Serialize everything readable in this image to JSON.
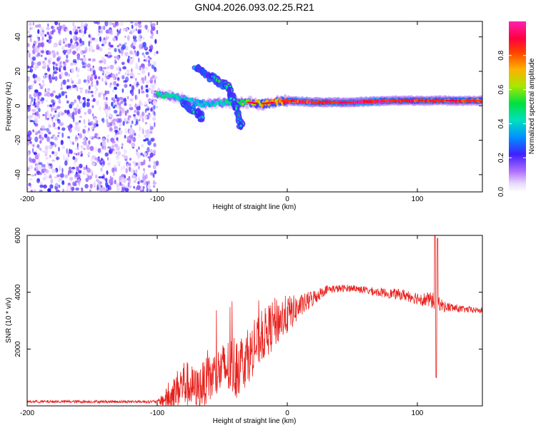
{
  "title": "GN04.2026.093.02.25.R21",
  "chart_data": [
    {
      "type": "heatmap",
      "title": "GN04.2026.093.02.25.R21",
      "xlabel": "Height of straight line (km)",
      "ylabel": "Frequency (Hz)",
      "xlim": [
        -200,
        150
      ],
      "ylim": [
        -50,
        49
      ],
      "xticks": [
        -200,
        -100,
        0,
        100
      ],
      "yticks": [
        -40,
        -20,
        0,
        20,
        40
      ],
      "xtick_labels": [
        "-200",
        "-100",
        "0",
        "100"
      ],
      "ytick_labels": [
        "-40",
        "-20",
        "0",
        "20",
        "40"
      ],
      "colorbar": {
        "label": "Normalized spectral amplitude",
        "range": [
          0,
          1
        ],
        "ticks": [
          0.0,
          0.2,
          0.4,
          0.6,
          0.8
        ],
        "tick_labels": [
          "0.0",
          "0.2",
          "0.4",
          "0.6",
          "0.8"
        ],
        "colors": [
          "#ffffff",
          "#9a50ff",
          "#2020ff",
          "#00d8ff",
          "#00e060",
          "#d8e800",
          "#ff9000",
          "#ff0000",
          "#ff10a0"
        ]
      },
      "noise_region_km": [
        -200,
        -100
      ],
      "ridge_track": [
        {
          "x": -100,
          "y": 7,
          "amp": 0.45
        },
        {
          "x": -80,
          "y": 4,
          "amp": 0.4
        },
        {
          "x": -65,
          "y": 1,
          "amp": 0.35
        },
        {
          "x": -45,
          "y": 2,
          "amp": 0.45
        },
        {
          "x": -30,
          "y": 2,
          "amp": 0.55
        },
        {
          "x": -20,
          "y": 1,
          "amp": 0.7
        },
        {
          "x": -10,
          "y": 2,
          "amp": 0.75
        },
        {
          "x": 0,
          "y": 3,
          "amp": 0.85
        },
        {
          "x": 20,
          "y": 2,
          "amp": 0.9
        },
        {
          "x": 50,
          "y": 2,
          "amp": 0.95
        },
        {
          "x": 80,
          "y": 3,
          "amp": 0.9
        },
        {
          "x": 100,
          "y": 3,
          "amp": 0.85
        },
        {
          "x": 120,
          "y": 3,
          "amp": 0.85
        },
        {
          "x": 150,
          "y": 3,
          "amp": 0.8
        }
      ],
      "branches": [
        {
          "name": "lower",
          "points": [
            {
              "x": -80,
              "y": 2
            },
            {
              "x": -65,
              "y": -7
            }
          ]
        },
        {
          "name": "upper",
          "points": [
            {
              "x": -70,
              "y": 22
            },
            {
              "x": -45,
              "y": 10
            },
            {
              "x": -35,
              "y": -13
            }
          ]
        }
      ]
    },
    {
      "type": "line",
      "xlabel": "Height of straight line (km)",
      "ylabel": "SNR (10 * v/v)",
      "xlim": [
        -200,
        150
      ],
      "ylim": [
        0,
        6000
      ],
      "xticks": [
        -200,
        -100,
        0,
        100
      ],
      "yticks": [
        2000,
        4000,
        6000
      ],
      "xtick_labels": [
        "-200",
        "-100",
        "0",
        "100"
      ],
      "ytick_labels": [
        "2000",
        "4000",
        "6000"
      ],
      "color": "#e8201c",
      "envelope": [
        {
          "x": -200,
          "y": 150,
          "spread": 50
        },
        {
          "x": -100,
          "y": 150,
          "spread": 50
        },
        {
          "x": -90,
          "y": 300,
          "spread": 500
        },
        {
          "x": -80,
          "y": 800,
          "spread": 900
        },
        {
          "x": -70,
          "y": 600,
          "spread": 700
        },
        {
          "x": -60,
          "y": 900,
          "spread": 900
        },
        {
          "x": -50,
          "y": 1300,
          "spread": 900
        },
        {
          "x": -40,
          "y": 1400,
          "spread": 1200
        },
        {
          "x": -30,
          "y": 1700,
          "spread": 900
        },
        {
          "x": -20,
          "y": 2400,
          "spread": 900
        },
        {
          "x": -10,
          "y": 2900,
          "spread": 900
        },
        {
          "x": 0,
          "y": 3200,
          "spread": 700
        },
        {
          "x": 10,
          "y": 3500,
          "spread": 400
        },
        {
          "x": 20,
          "y": 3800,
          "spread": 300
        },
        {
          "x": 30,
          "y": 4100,
          "spread": 150
        },
        {
          "x": 50,
          "y": 4150,
          "spread": 120
        },
        {
          "x": 70,
          "y": 4000,
          "spread": 150
        },
        {
          "x": 90,
          "y": 3900,
          "spread": 200
        },
        {
          "x": 105,
          "y": 3750,
          "spread": 250
        },
        {
          "x": 112,
          "y": 3700,
          "spread": 300
        },
        {
          "x": 115,
          "y": 3700,
          "spread": 300
        },
        {
          "x": 120,
          "y": 3500,
          "spread": 200
        },
        {
          "x": 135,
          "y": 3400,
          "spread": 120
        },
        {
          "x": 150,
          "y": 3350,
          "spread": 100
        }
      ],
      "spikes": [
        {
          "x": 113.5,
          "y": 6000
        },
        {
          "x": 114.5,
          "y": 1000
        },
        {
          "x": 115.5,
          "y": 5900
        }
      ]
    }
  ]
}
